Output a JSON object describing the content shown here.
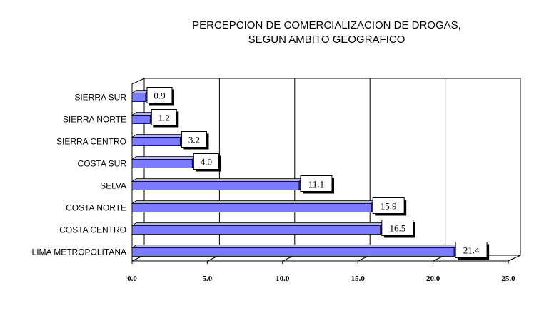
{
  "chart_data": {
    "type": "bar",
    "orientation": "horizontal",
    "title_lines": [
      "PERCEPCION DE COMERCIALIZACION DE DROGAS,",
      "SEGUN AMBITO GEOGRAFICO"
    ],
    "categories": [
      "SIERRA SUR",
      "SIERRA NORTE",
      "SIERRA CENTRO",
      "COSTA SUR",
      "SELVA",
      "COSTA NORTE",
      "COSTA CENTRO",
      "LIMA METROPOLITANA"
    ],
    "values": [
      0.9,
      1.2,
      3.2,
      4.0,
      11.1,
      15.9,
      16.5,
      21.4
    ],
    "value_labels": [
      "0.9",
      "1.2",
      "3.2",
      "4.0",
      "11.1",
      "15.9",
      "16.5",
      "21.4"
    ],
    "xlim": [
      0,
      25
    ],
    "xticks": [
      "0.0",
      "5.0",
      "10.0",
      "15.0",
      "20.0",
      "25.0"
    ],
    "grid": "vertical",
    "legend": "none",
    "bar_color": "#7b7bff",
    "bar_top_color": "#b3b3ff",
    "bar_side_color": "#3c3cb4"
  }
}
